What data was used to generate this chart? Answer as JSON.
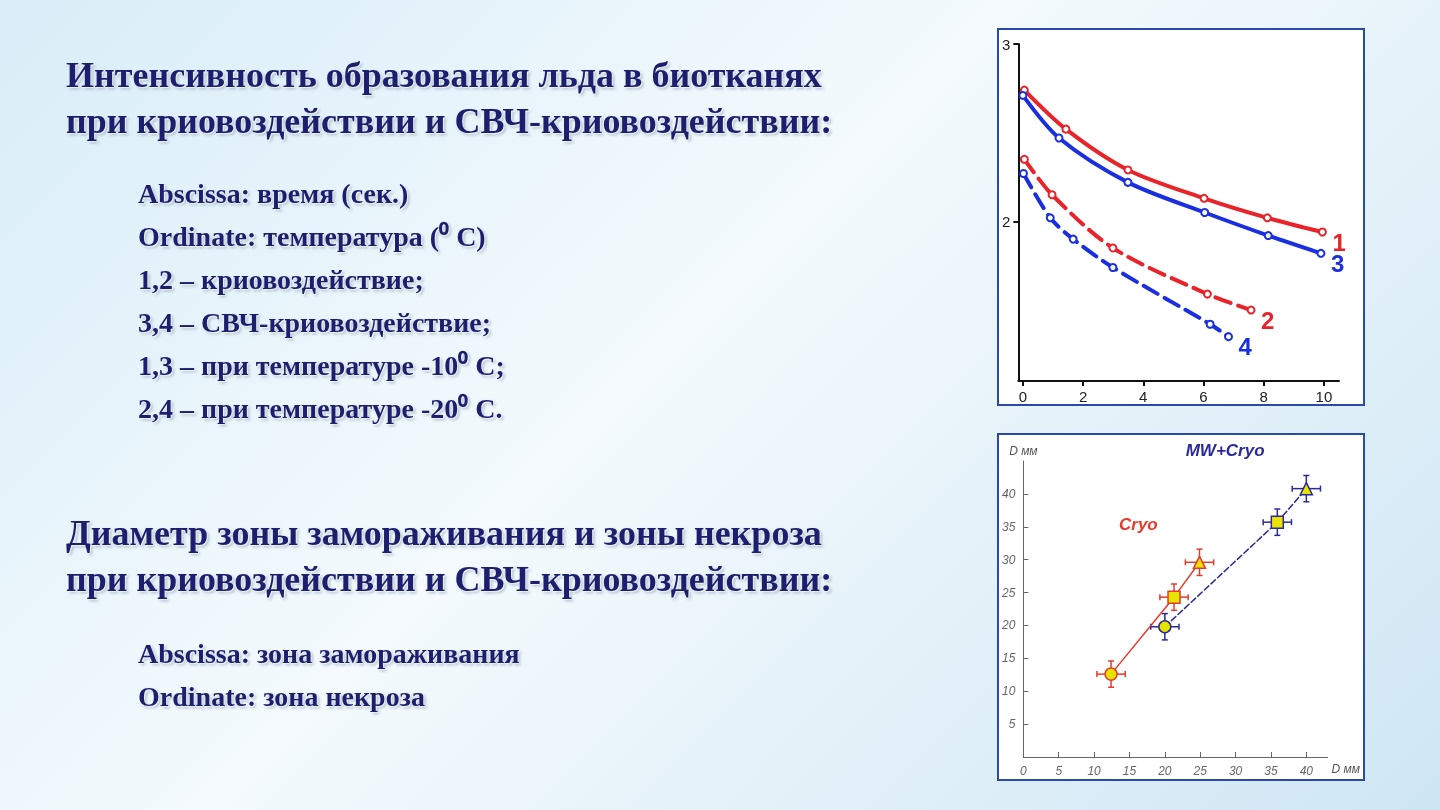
{
  "chart_data": [
    {
      "type": "line",
      "title": "Интенсивность образования льда в биотканях при криовоздействии и СВЧ-криовоздействии:",
      "annotations": [
        "Abscissa: время (сек.)",
        "Ordinate: температура (⁰ С)",
        "1,2 – криовоздействие;",
        "3,4 – СВЧ-криовоздействие;",
        "1,3 – при температуре -10⁰ С;",
        "2,4 – при температуре -20⁰ С."
      ],
      "xlim": [
        -0.15,
        10.5
      ],
      "xticks": [
        0,
        2,
        4,
        6,
        8,
        10
      ],
      "ylim": [
        1.1,
        3
      ],
      "yticks": [
        2,
        3
      ],
      "legend": false,
      "marker": "circle",
      "series": [
        {
          "name": "1",
          "color": "#e8232a",
          "line_style": "solid",
          "x": [
            0.05,
            1.43,
            3.49,
            6.02,
            8.12,
            9.95
          ],
          "values": [
            2.74,
            2.52,
            2.29,
            2.13,
            2.02,
            1.94
          ]
        },
        {
          "name": "2",
          "color": "#e8232a",
          "line_style": "dashed",
          "x": [
            0.05,
            0.97,
            2.99,
            6.13,
            7.58
          ],
          "values": [
            2.35,
            2.15,
            1.85,
            1.59,
            1.5
          ]
        },
        {
          "name": "3",
          "color": "#1a2fe0",
          "line_style": "solid",
          "x": [
            0,
            1.2,
            3.49,
            6.04,
            8.15,
            9.9
          ],
          "values": [
            2.71,
            2.47,
            2.22,
            2.05,
            1.92,
            1.82
          ]
        },
        {
          "name": "4",
          "color": "#1a2fe0",
          "line_style": "dashed",
          "x": [
            0.02,
            0.91,
            1.67,
            2.99,
            6.22,
            6.83
          ],
          "values": [
            2.27,
            2.02,
            1.9,
            1.74,
            1.42,
            1.35
          ]
        }
      ]
    },
    {
      "type": "line",
      "title": "Диаметр зоны замораживания и зоны некроза при криовоздействии и СВЧ-криовоздействии:",
      "annotations": [
        "Abscissa:  зона замораживания",
        "Ordinate:  зона некроза"
      ],
      "xlabel": "D мм",
      "ylabel": "D мм",
      "xlim": [
        0,
        43
      ],
      "xticks": [
        0,
        5,
        10,
        15,
        20,
        25,
        30,
        35,
        40
      ],
      "ylim": [
        0,
        45
      ],
      "yticks": [
        5,
        10,
        15,
        20,
        25,
        30,
        35,
        40
      ],
      "legend": false,
      "series": [
        {
          "name": "Cryo",
          "color": "#e83a2a",
          "line_style": "solid",
          "marker": [
            "circle",
            "square",
            "triangle"
          ],
          "x": [
            12.4,
            21.3,
            24.9
          ],
          "values": [
            12.6,
            24.3,
            29.6
          ],
          "errors": [
            2,
            2,
            2
          ],
          "xerrors": [
            2,
            2,
            2
          ]
        },
        {
          "name": "MW+Cryo",
          "color": "#2a2a9a",
          "line_style": "dashed",
          "marker": [
            "circle",
            "square",
            "triangle"
          ],
          "x": [
            20,
            35.9,
            40
          ],
          "values": [
            19.8,
            35.7,
            40.8
          ],
          "errors": [
            2,
            2,
            2
          ],
          "xerrors": [
            2,
            2,
            2
          ]
        }
      ]
    }
  ]
}
